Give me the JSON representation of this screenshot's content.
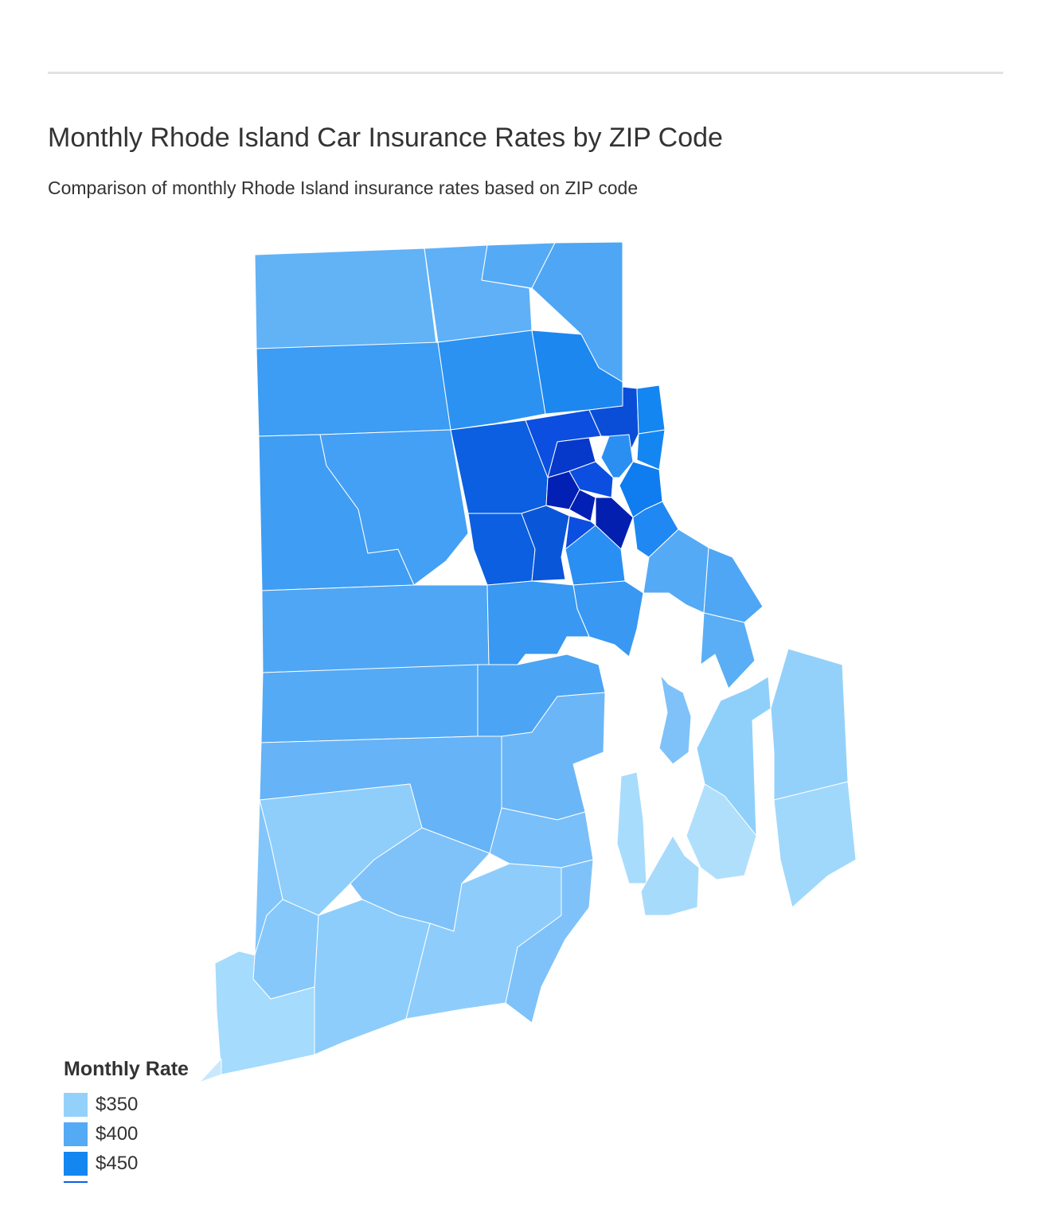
{
  "header": {
    "title": "Monthly Rhode Island Car Insurance Rates by ZIP Code",
    "subtitle": "Comparison of monthly Rhode Island insurance rates based on ZIP code"
  },
  "legend": {
    "title": "Monthly Rate",
    "items": [
      {
        "label": "$350",
        "color": "#93d1fb"
      },
      {
        "label": "$400",
        "color": "#55aaf5"
      },
      {
        "label": "$450",
        "color": "#1486f1"
      },
      {
        "label": "",
        "color": "#0b5fe0"
      }
    ]
  },
  "colors": {
    "rate_350": "#93d1fb",
    "rate_375": "#7ec2f9",
    "rate_400": "#55aaf5",
    "rate_425": "#3898f2",
    "rate_450": "#1486f1",
    "rate_475": "#0b5fe0",
    "rate_500": "#0639c9",
    "rate_525": "#0220b4",
    "border": "#ffffff",
    "divider": "#e3e3e3",
    "text": "#333333"
  }
}
